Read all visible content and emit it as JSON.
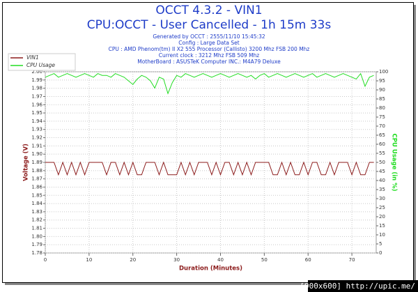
{
  "chart_data": {
    "type": "line",
    "title": "OCCT 4.3.2 - VIN1",
    "subtitle": "CPU:OCCT - User Cancelled - 1h 15m 33s",
    "annotations": [
      "Generated by OCCT : 2555/11/10 15:45:32",
      "Config : Large Data Set",
      "CPU : AMD Phenom(tm) II X2 555 Processor (Callisto) 3200 Mhz FSB 200 Mhz",
      "Current clock : 3212 Mhz FSB 509 Mhz",
      "MotherBoard : ASUSTeK Computer INC.: M4A79 Deluxe"
    ],
    "xlabel": "Duration (Minutes)",
    "ylabel": "Voltage (V)",
    "y2label": "CPU Usage (in %)",
    "x": [
      0,
      1,
      2,
      3,
      4,
      5,
      6,
      7,
      8,
      9,
      10,
      11,
      12,
      13,
      14,
      15,
      16,
      17,
      18,
      19,
      20,
      21,
      22,
      23,
      24,
      25,
      26,
      27,
      28,
      29,
      30,
      31,
      32,
      33,
      34,
      35,
      36,
      37,
      38,
      39,
      40,
      41,
      42,
      43,
      44,
      45,
      46,
      47,
      48,
      49,
      50,
      51,
      52,
      53,
      54,
      55,
      56,
      57,
      58,
      59,
      60,
      61,
      62,
      63,
      64,
      65,
      66,
      67,
      68,
      69,
      70,
      71,
      72,
      73,
      74,
      75
    ],
    "series": [
      {
        "name": "VIN1",
        "color": "#8b1a1a",
        "values": [
          1.89,
          1.89,
          1.89,
          1.875,
          1.89,
          1.875,
          1.89,
          1.875,
          1.89,
          1.875,
          1.89,
          1.89,
          1.89,
          1.89,
          1.875,
          1.89,
          1.89,
          1.875,
          1.89,
          1.875,
          1.89,
          1.875,
          1.875,
          1.89,
          1.89,
          1.89,
          1.875,
          1.89,
          1.875,
          1.875,
          1.875,
          1.89,
          1.875,
          1.89,
          1.875,
          1.89,
          1.89,
          1.89,
          1.875,
          1.89,
          1.875,
          1.89,
          1.89,
          1.875,
          1.89,
          1.875,
          1.89,
          1.875,
          1.89,
          1.89,
          1.89,
          1.89,
          1.875,
          1.875,
          1.89,
          1.875,
          1.89,
          1.875,
          1.875,
          1.89,
          1.875,
          1.89,
          1.89,
          1.875,
          1.875,
          1.89,
          1.875,
          1.89,
          1.89,
          1.89,
          1.875,
          1.89,
          1.875,
          1.875,
          1.89,
          1.89
        ]
      },
      {
        "name": "CPU Usage",
        "color": "#22dd22",
        "axis": "y2",
        "values": [
          97,
          98,
          99,
          97,
          98,
          99,
          98,
          97,
          98,
          99,
          98,
          97,
          99,
          98,
          98,
          97,
          99,
          98,
          97,
          95,
          93,
          96,
          98,
          97,
          95,
          91,
          97,
          96,
          88,
          94,
          98,
          97,
          99,
          98,
          97,
          98,
          99,
          98,
          97,
          98,
          99,
          98,
          97,
          98,
          99,
          98,
          97,
          98,
          96,
          98,
          99,
          97,
          98,
          99,
          98,
          97,
          98,
          99,
          98,
          97,
          98,
          99,
          97,
          98,
          99,
          98,
          97,
          98,
          99,
          98,
          97,
          96,
          99,
          92,
          97,
          98
        ]
      }
    ],
    "xlim": [
      0,
      75.55
    ],
    "xticks": [
      0,
      10,
      20,
      30,
      40,
      50,
      60,
      70
    ],
    "ylim": [
      1.78,
      2.0
    ],
    "yticks": [
      1.78,
      1.79,
      {
        "value": 1.8,
        "label": "1.80"
      },
      1.81,
      1.82,
      1.83,
      1.84,
      1.85,
      1.86,
      1.87,
      1.88,
      1.89,
      {
        "value": 1.9,
        "label": "1.90"
      },
      1.91,
      1.92,
      1.93,
      1.94,
      1.95,
      1.96,
      1.97,
      1.98,
      1.99,
      {
        "value": 2.0,
        "label": "2.00"
      }
    ],
    "y2lim": [
      0,
      100
    ],
    "y2ticks": [
      0,
      5,
      10,
      15,
      20,
      25,
      30,
      35,
      40,
      45,
      50,
      55,
      60,
      65,
      70,
      75,
      80,
      85,
      90,
      95,
      100
    ],
    "grid": true,
    "legend": "upper left"
  },
  "watermark": "[900x600] http://upic.me/"
}
